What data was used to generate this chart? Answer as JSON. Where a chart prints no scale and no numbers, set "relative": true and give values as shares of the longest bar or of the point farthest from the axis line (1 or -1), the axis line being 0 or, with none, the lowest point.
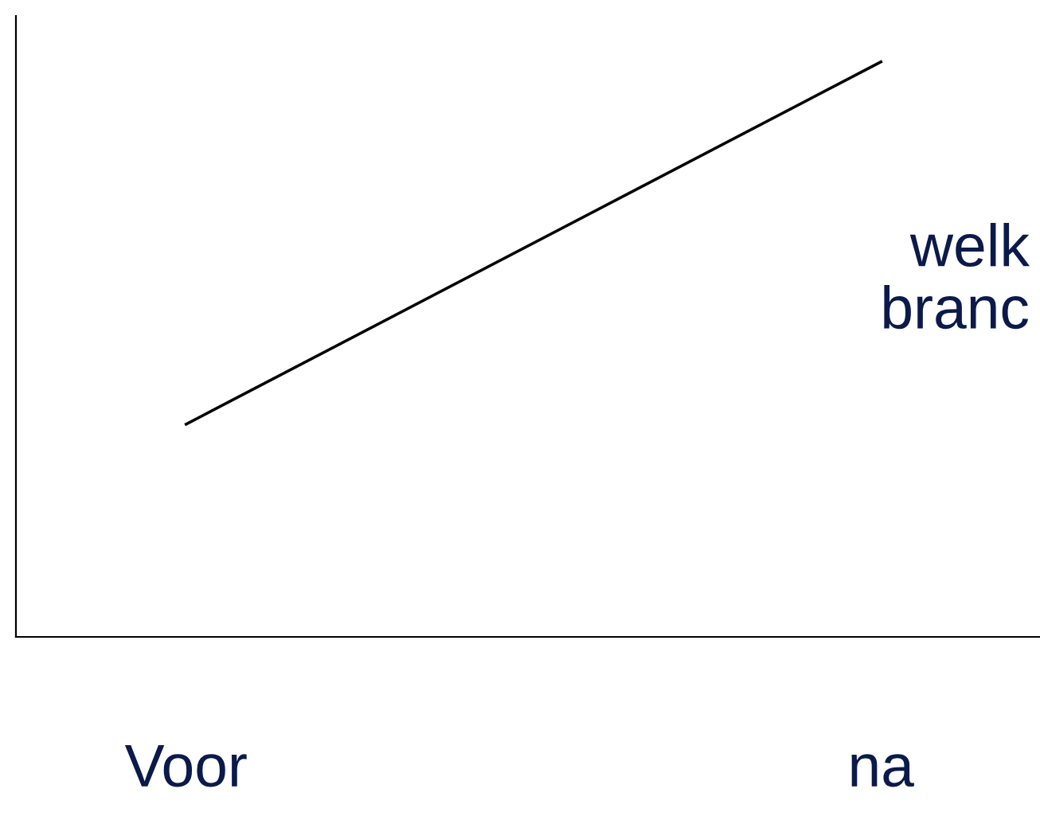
{
  "chart_data": {
    "type": "line",
    "categories": [
      "Voor",
      "na"
    ],
    "relative": true,
    "series": [
      {
        "color": "#000000",
        "values": [
          0.37,
          1
        ]
      }
    ],
    "annotations": [
      "welk\nbranc"
    ],
    "marker": "none",
    "grid": false,
    "legend": false
  }
}
